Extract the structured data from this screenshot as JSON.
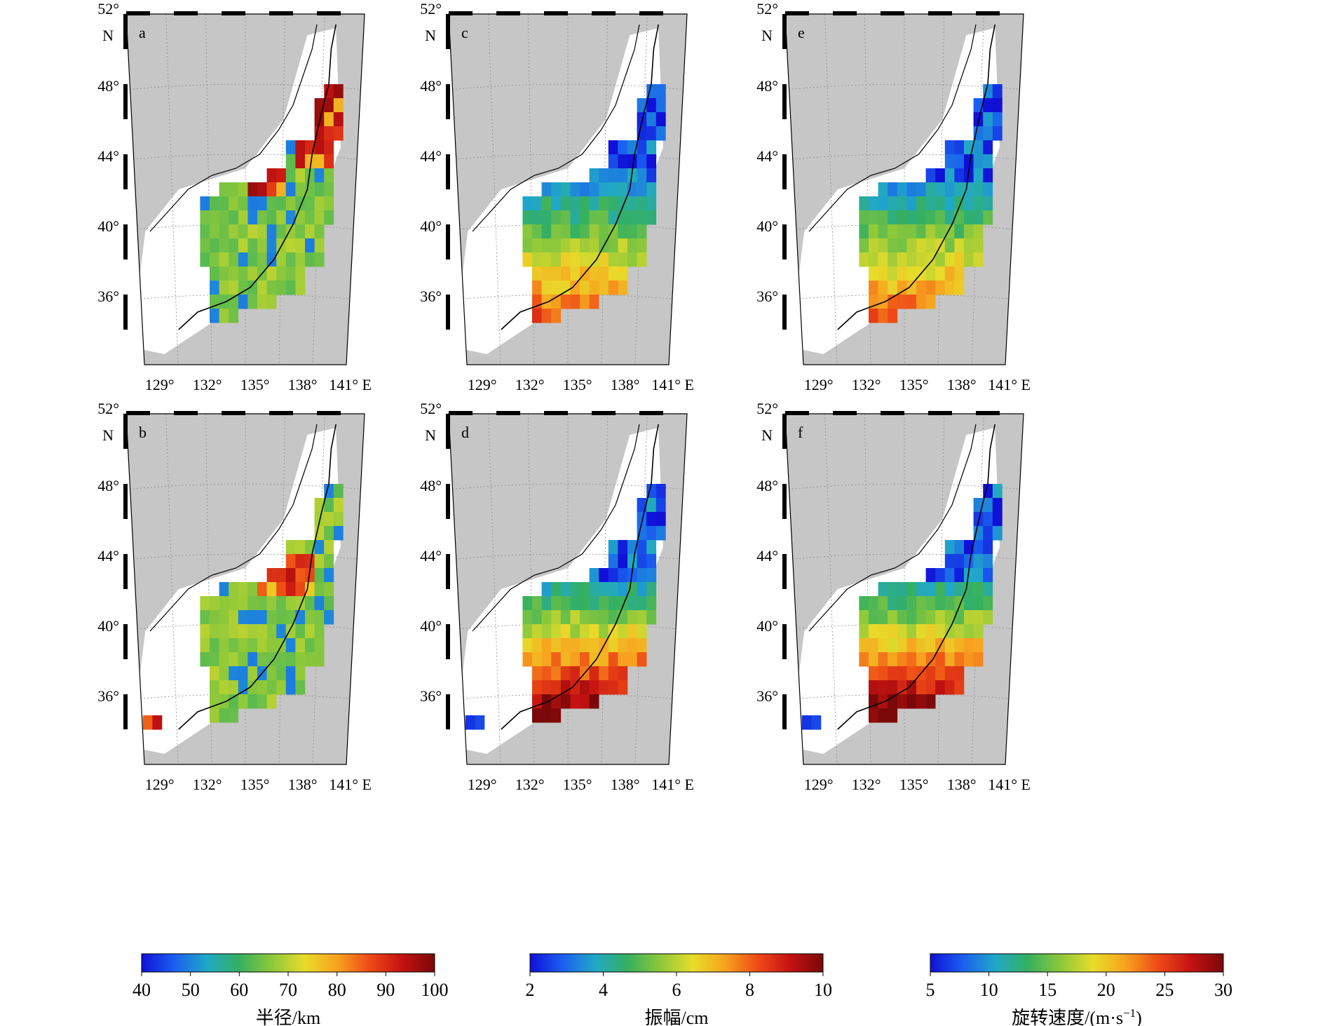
{
  "figure": {
    "panels": [
      {
        "letter": "a",
        "variable": "radius",
        "row": "top",
        "colorbar": 0
      },
      {
        "letter": "c",
        "variable": "amplitude",
        "row": "top",
        "colorbar": 1
      },
      {
        "letter": "e",
        "variable": "rotation_speed",
        "row": "top",
        "colorbar": 2
      },
      {
        "letter": "b",
        "variable": "radius",
        "row": "bottom",
        "colorbar": 0
      },
      {
        "letter": "d",
        "variable": "amplitude",
        "row": "bottom",
        "colorbar": 1
      },
      {
        "letter": "f",
        "variable": "rotation_speed",
        "row": "bottom",
        "colorbar": 2
      }
    ],
    "lat_labels": [
      "52°",
      "48°",
      "44°",
      "40°",
      "36°"
    ],
    "lat_hemisphere": "N",
    "lon_labels": [
      "129°",
      "132°",
      "135°",
      "138°",
      "141° E"
    ],
    "colorbars": [
      {
        "ticks": [
          "40",
          "50",
          "60",
          "70",
          "80",
          "90",
          "100"
        ],
        "min": 40,
        "max": 100,
        "label": "半径/km"
      },
      {
        "ticks": [
          "2",
          "4",
          "6",
          "8",
          "10"
        ],
        "min": 2,
        "max": 10,
        "label": "振幅/cm"
      },
      {
        "ticks": [
          "5",
          "10",
          "15",
          "20",
          "25",
          "30"
        ],
        "min": 5,
        "max": 30,
        "label_main": "旋转速度/(m·s",
        "label_sup": "−1",
        "label_end": ")"
      }
    ],
    "colors": {
      "land": "#c6c6c6",
      "sea": "#ffffff",
      "colormap": "jet",
      "jet_stops": [
        "#1010d8",
        "#1a5ff0",
        "#20a8c8",
        "#35b060",
        "#8cc83a",
        "#e8dc2a",
        "#f7a21e",
        "#ee4a16",
        "#c41212",
        "#7a0808"
      ]
    }
  }
}
